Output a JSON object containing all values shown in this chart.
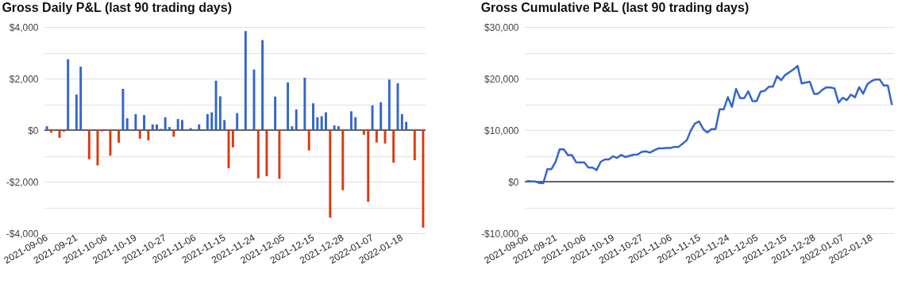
{
  "chart_data": [
    {
      "type": "bar",
      "title": "Gross Daily P&L (last 90 trading days)",
      "categories": [
        "2021-09-06",
        null,
        null,
        null,
        null,
        null,
        null,
        "2021-09-21",
        null,
        null,
        null,
        null,
        null,
        null,
        "2021-10-06",
        null,
        null,
        null,
        null,
        null,
        null,
        "2021-10-19",
        null,
        null,
        null,
        null,
        null,
        null,
        "2021-10-27",
        null,
        null,
        null,
        null,
        null,
        null,
        "2021-11-06",
        null,
        null,
        null,
        null,
        null,
        null,
        "2021-11-15",
        null,
        null,
        null,
        null,
        null,
        null,
        "2021-11-24",
        null,
        null,
        null,
        null,
        null,
        null,
        "2021-12-05",
        null,
        null,
        null,
        null,
        null,
        null,
        "2021-12-15",
        null,
        null,
        null,
        null,
        null,
        null,
        "2021-12-28",
        null,
        null,
        null,
        null,
        null,
        null,
        "2022-01-07",
        null,
        null,
        null,
        null,
        null,
        null,
        "2022-01-18",
        null,
        null,
        null,
        null,
        null
      ],
      "values": [
        150,
        -100,
        0,
        -300,
        -60,
        2750,
        0,
        1380,
        2460,
        0,
        -1130,
        0,
        -1370,
        -50,
        0,
        -990,
        0,
        -490,
        1600,
        460,
        0,
        620,
        -330,
        580,
        -400,
        220,
        220,
        50,
        500,
        120,
        -260,
        430,
        390,
        0,
        80,
        0,
        220,
        0,
        620,
        690,
        1920,
        1310,
        390,
        -1480,
        -670,
        660,
        0,
        3840,
        0,
        2350,
        -1870,
        3490,
        -1790,
        0,
        1300,
        -1890,
        0,
        1850,
        150,
        800,
        20,
        2030,
        -790,
        1040,
        500,
        540,
        690,
        -3400,
        180,
        150,
        -2330,
        0,
        730,
        500,
        0,
        -180,
        -2780,
        960,
        -480,
        1080,
        -520,
        1960,
        -1260,
        1820,
        620,
        320,
        0,
        -1170,
        0,
        -3780
      ],
      "colors": [
        "#3366cc",
        "#dc3912",
        "#3366cc",
        "#dc3912",
        "#dc3912",
        "#3366cc",
        "#3366cc",
        "#3366cc",
        "#3366cc",
        "#3366cc",
        "#dc3912",
        "#3366cc",
        "#dc3912",
        "#dc3912",
        "#3366cc",
        "#dc3912",
        "#3366cc",
        "#dc3912",
        "#3366cc",
        "#3366cc",
        "#3366cc",
        "#3366cc",
        "#dc3912",
        "#3366cc",
        "#dc3912",
        "#3366cc",
        "#3366cc",
        "#3366cc",
        "#3366cc",
        "#3366cc",
        "#dc3912",
        "#3366cc",
        "#3366cc",
        "#3366cc",
        "#3366cc",
        "#3366cc",
        "#3366cc",
        "#3366cc",
        "#3366cc",
        "#3366cc",
        "#3366cc",
        "#3366cc",
        "#3366cc",
        "#dc3912",
        "#dc3912",
        "#3366cc",
        "#3366cc",
        "#3366cc",
        "#3366cc",
        "#3366cc",
        "#dc3912",
        "#3366cc",
        "#dc3912",
        "#3366cc",
        "#3366cc",
        "#dc3912",
        "#3366cc",
        "#3366cc",
        "#3366cc",
        "#3366cc",
        "#3366cc",
        "#3366cc",
        "#dc3912",
        "#3366cc",
        "#3366cc",
        "#3366cc",
        "#3366cc",
        "#dc3912",
        "#3366cc",
        "#3366cc",
        "#dc3912",
        "#3366cc",
        "#3366cc",
        "#3366cc",
        "#3366cc",
        "#dc3912",
        "#dc3912",
        "#3366cc",
        "#dc3912",
        "#3366cc",
        "#dc3912",
        "#3366cc",
        "#dc3912",
        "#3366cc",
        "#3366cc",
        "#3366cc",
        "#3366cc",
        "#dc3912",
        "#3366cc",
        "#dc3912"
      ],
      "ylim": [
        -4000,
        4000
      ],
      "yticks": [
        {
          "value": -4000,
          "label": "-$4,000"
        },
        {
          "value": -3000,
          "label": null
        },
        {
          "value": -2000,
          "label": "-$2,000"
        },
        {
          "value": -1000,
          "label": null
        },
        {
          "value": 0,
          "label": "$0"
        },
        {
          "value": 1000,
          "label": null
        },
        {
          "value": 2000,
          "label": "$2,000"
        },
        {
          "value": 3000,
          "label": null
        },
        {
          "value": 4000,
          "label": "$4,000"
        }
      ],
      "grid": "y",
      "ref_lines": [
        {
          "axis": "y",
          "value": 0,
          "label": null,
          "color": "#333333"
        }
      ]
    },
    {
      "type": "line",
      "title": "Gross Cumulative P&L (last 90 trading days)",
      "categories": [
        "2021-09-06",
        null,
        null,
        null,
        null,
        null,
        null,
        "2021-09-21",
        null,
        null,
        null,
        null,
        null,
        null,
        "2021-10-06",
        null,
        null,
        null,
        null,
        null,
        null,
        "2021-10-19",
        null,
        null,
        null,
        null,
        null,
        null,
        "2021-10-27",
        null,
        null,
        null,
        null,
        null,
        null,
        "2021-11-06",
        null,
        null,
        null,
        null,
        null,
        null,
        "2021-11-15",
        null,
        null,
        null,
        null,
        null,
        null,
        "2021-11-24",
        null,
        null,
        null,
        null,
        null,
        null,
        "2021-12-05",
        null,
        null,
        null,
        null,
        null,
        null,
        "2021-12-15",
        null,
        null,
        null,
        null,
        null,
        null,
        "2021-12-28",
        null,
        null,
        null,
        null,
        null,
        null,
        "2022-01-07",
        null,
        null,
        null,
        null,
        null,
        null,
        "2022-01-18",
        null,
        null,
        null,
        null,
        null
      ],
      "series": [
        {
          "color": "#3366cc",
          "values": [
            150,
            50,
            50,
            -250,
            -310,
            2440,
            2440,
            3820,
            6280,
            6280,
            5150,
            5150,
            3780,
            3730,
            3730,
            2740,
            2740,
            2250,
            3850,
            4310,
            4310,
            4930,
            4600,
            5180,
            4780,
            5000,
            5220,
            5270,
            5770,
            5890,
            5630,
            6060,
            6450,
            6450,
            6530,
            6530,
            6750,
            6750,
            7370,
            8060,
            9980,
            11290,
            11680,
            10200,
            9530,
            10190,
            10190,
            14030,
            14030,
            16380,
            14510,
            18000,
            16210,
            16210,
            17510,
            15620,
            15620,
            17470,
            17620,
            18420,
            18440,
            20470,
            19680,
            20720,
            21220,
            21760,
            22450,
            19050,
            19230,
            19380,
            17050,
            17050,
            17780,
            18280,
            18280,
            18100,
            15320,
            16280,
            15800,
            16880,
            16360,
            18320,
            17060,
            18880,
            19500,
            19820,
            19820,
            18650,
            18650,
            14870
          ]
        }
      ],
      "ylim": [
        -10000,
        30000
      ],
      "yticks": [
        {
          "value": -10000,
          "label": "-$10,000"
        },
        {
          "value": -5000,
          "label": null
        },
        {
          "value": 0,
          "label": "$0"
        },
        {
          "value": 5000,
          "label": null
        },
        {
          "value": 10000,
          "label": "$10,000"
        },
        {
          "value": 15000,
          "label": null
        },
        {
          "value": 20000,
          "label": "$20,000"
        },
        {
          "value": 25000,
          "label": null
        },
        {
          "value": 30000,
          "label": "$30,000"
        }
      ],
      "grid": "y",
      "ref_lines": [
        {
          "axis": "y",
          "value": 0,
          "label": null,
          "color": "#333333"
        }
      ]
    }
  ]
}
